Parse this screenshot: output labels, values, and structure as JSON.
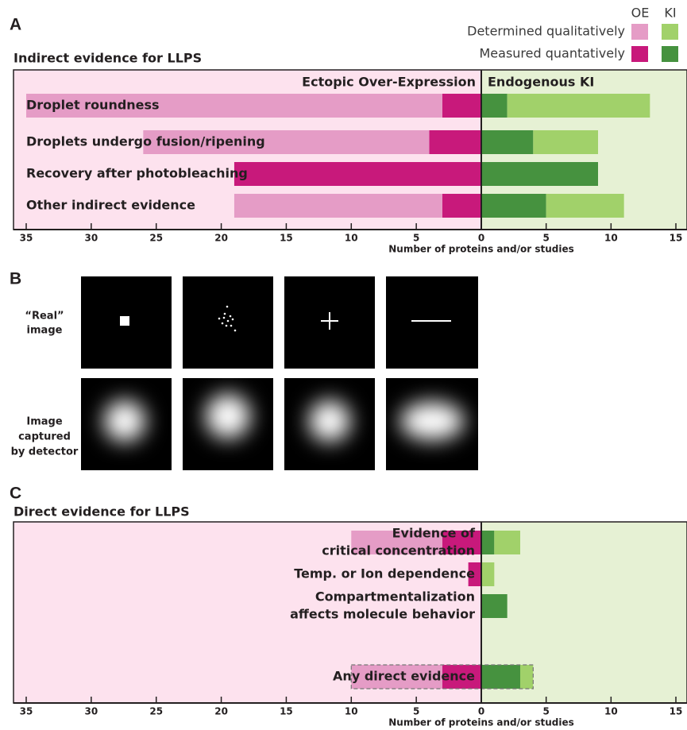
{
  "chart_data": [
    {
      "type": "bar",
      "panel": "A",
      "title": "Indirect evidence for LLPS",
      "side_labels": [
        "Ectopic Over-Expression",
        "Endogenous KI"
      ],
      "categories": [
        [
          "Droplet roundness"
        ],
        [
          "Droplets undergo fusion/ripening"
        ],
        [
          "Recovery after photobleaching"
        ],
        [
          "Other indirect evidence"
        ]
      ],
      "series": [
        {
          "name": "Measured quantatively",
          "side": "OE",
          "color": "#c8197b",
          "values": [
            3,
            4,
            19,
            3
          ]
        },
        {
          "name": "Determined qualitatively",
          "side": "OE",
          "color": "#e59cc6",
          "values": [
            32,
            22,
            0,
            16
          ]
        },
        {
          "name": "Measured quantatively",
          "side": "KI",
          "color": "#46923f",
          "values": [
            2,
            4,
            9,
            5
          ]
        },
        {
          "name": "Determined qualitatively",
          "side": "KI",
          "color": "#a1d16a",
          "values": [
            11,
            5,
            0,
            6
          ]
        }
      ],
      "xlim_oe": [
        0,
        35
      ],
      "xlim_ki": [
        0,
        15
      ],
      "xticks_oe": [
        35,
        30,
        25,
        20,
        15,
        10,
        5,
        0
      ],
      "xticks_ki": [
        5,
        10,
        15
      ],
      "xlabel": "Number of proteins and/or studies",
      "legend": true
    },
    {
      "type": "bar",
      "panel": "C",
      "title": "Direct evidence for LLPS",
      "categories": [
        [
          "Evidence of",
          "critical concentration"
        ],
        [
          "Temp. or Ion dependence"
        ],
        [
          "Compartmentalization",
          "affects molecule behavior"
        ],
        [
          "Any direct evidence"
        ]
      ],
      "series": [
        {
          "name": "Measured quantatively",
          "side": "OE",
          "color": "#c8197b",
          "values": [
            3,
            1,
            0,
            3
          ]
        },
        {
          "name": "Determined qualitatively",
          "side": "OE",
          "color": "#e59cc6",
          "values": [
            7,
            0,
            0,
            7
          ]
        },
        {
          "name": "Measured quantatively",
          "side": "KI",
          "color": "#46923f",
          "values": [
            1,
            0,
            2,
            3
          ]
        },
        {
          "name": "Determined qualitatively",
          "side": "KI",
          "color": "#a1d16a",
          "values": [
            2,
            1,
            0,
            1
          ]
        }
      ],
      "xlim_oe": [
        0,
        35
      ],
      "xlim_ki": [
        0,
        15
      ],
      "xticks_oe": [
        35,
        30,
        25,
        20,
        15,
        10,
        5,
        0
      ],
      "xticks_ki": [
        5,
        10,
        15
      ],
      "xlabel": "Number of proteins and/or studies",
      "legend": false,
      "dashed_category": 3
    }
  ],
  "panel_b": {
    "panel": "B",
    "row_labels": [
      [
        "“Real”",
        "image"
      ],
      [
        "Image",
        "captured",
        "by detector"
      ]
    ]
  }
}
